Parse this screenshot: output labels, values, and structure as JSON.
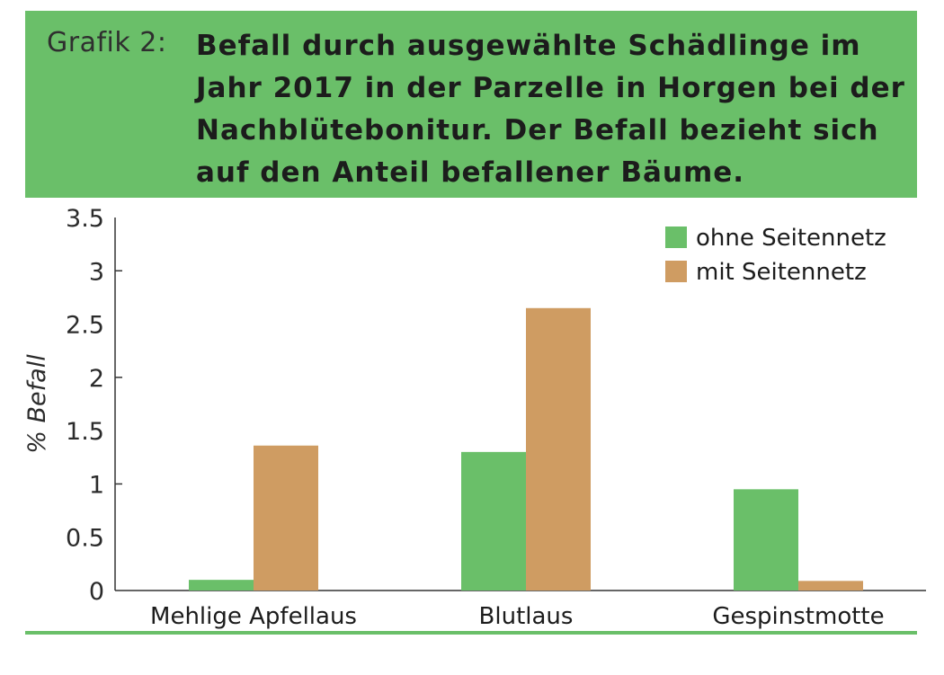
{
  "header": {
    "label": "Grafik 2:",
    "title": "Befall durch ausgewählte Schädlinge im Jahr 2017 in der Parzelle in Horgen bei der Nachblütebonitur. Der Befall bezieht sich auf den Anteil befallener Bäume."
  },
  "colors": {
    "banner": "#6abf69",
    "ohne": "#6abf69",
    "mit": "#cf9c62",
    "axis": "#333333"
  },
  "chart_data": {
    "type": "bar",
    "title": "",
    "xlabel": "",
    "ylabel": "% Befall",
    "ylim": [
      0,
      3.5
    ],
    "yticks": [
      "0",
      "0.5",
      "1",
      "1.5",
      "2",
      "2.5",
      "3",
      "3.5"
    ],
    "categories": [
      "Mehlige Apfellaus",
      "Blutlaus",
      "Gespinstmotte"
    ],
    "series": [
      {
        "name": "ohne Seitennetz",
        "values": [
          0.1,
          1.3,
          0.95
        ]
      },
      {
        "name": "mit Seitennetz",
        "values": [
          1.36,
          2.65,
          0.09
        ]
      }
    ],
    "legend": "top-right",
    "grid": false
  }
}
